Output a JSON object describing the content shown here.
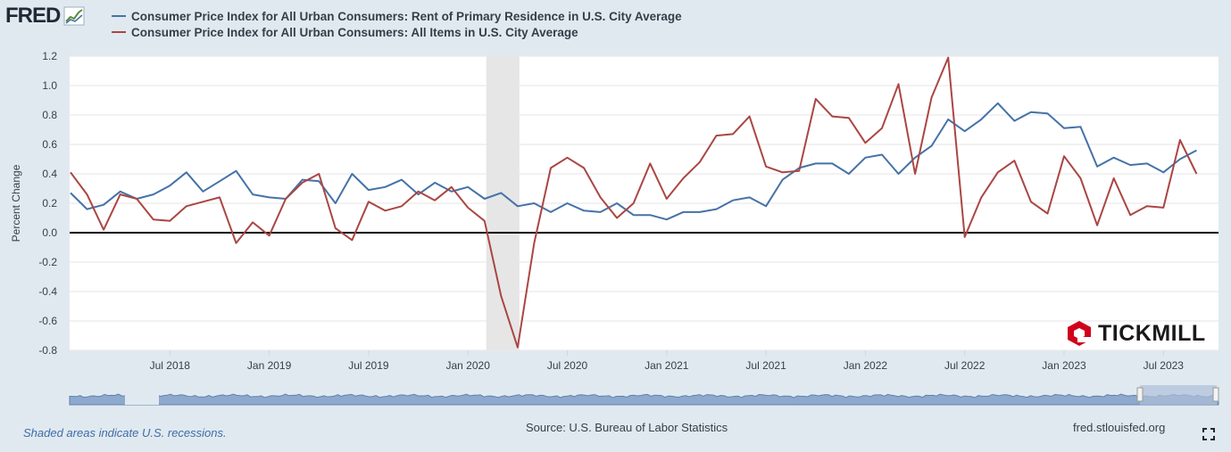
{
  "header": {
    "logo_text": "FRED"
  },
  "legend": [
    {
      "label": "Consumer Price Index for All Urban Consumers: Rent of Primary Residence in U.S. City Average",
      "color": "#4572a7"
    },
    {
      "label": "Consumer Price Index for All Urban Consumers: All Items in U.S. City Average",
      "color": "#aa4643"
    }
  ],
  "footer": {
    "note": "Shaded areas indicate U.S. recessions.",
    "source": "Source: U.S. Bureau of Labor Statistics",
    "url": "fred.stlouisfed.org"
  },
  "watermark": {
    "text": "TICKMILL",
    "color": "#d0021b"
  },
  "icons": {
    "fullscreen": "fullscreen-icon"
  },
  "chart_data": {
    "type": "line",
    "ylabel": "Percent Change",
    "xlabel": "",
    "ylim": [
      -0.8,
      1.2
    ],
    "y_ticks": [
      "1.2",
      "1.0",
      "0.8",
      "0.6",
      "0.4",
      "0.2",
      "0.0",
      "-0.2",
      "-0.4",
      "-0.6",
      "-0.8"
    ],
    "x_ticks": [
      "Jul 2018",
      "Jan 2019",
      "Jul 2019",
      "Jan 2020",
      "Jul 2020",
      "Jan 2021",
      "Jul 2021",
      "Jan 2022",
      "Jul 2022",
      "Jan 2023",
      "Jul 2023"
    ],
    "x_start": "2018-01",
    "x_end": "2023-08",
    "recession": {
      "start": "2020-02",
      "end": "2020-04"
    },
    "grid": true,
    "zero_line": true,
    "series": [
      {
        "name": "Consumer Price Index for All Urban Consumers: Rent of Primary Residence in U.S. City Average",
        "color": "#4572a7",
        "values": [
          0.27,
          0.16,
          0.19,
          0.28,
          0.23,
          0.26,
          0.32,
          0.41,
          0.28,
          0.35,
          0.42,
          0.26,
          0.24,
          0.23,
          0.36,
          0.35,
          0.2,
          0.4,
          0.29,
          0.31,
          0.36,
          0.26,
          0.34,
          0.28,
          0.31,
          0.23,
          0.27,
          0.18,
          0.2,
          0.14,
          0.2,
          0.15,
          0.14,
          0.2,
          0.12,
          0.12,
          0.09,
          0.14,
          0.14,
          0.16,
          0.22,
          0.24,
          0.18,
          0.36,
          0.44,
          0.47,
          0.47,
          0.4,
          0.51,
          0.53,
          0.4,
          0.51,
          0.59,
          0.77,
          0.69,
          0.77,
          0.88,
          0.76,
          0.82,
          0.81,
          0.71,
          0.72,
          0.45,
          0.51,
          0.46,
          0.47,
          0.41,
          0.5,
          0.56
        ]
      },
      {
        "name": "Consumer Price Index for All Urban Consumers: All Items in U.S. City Average",
        "color": "#aa4643",
        "values": [
          0.41,
          0.26,
          0.02,
          0.26,
          0.23,
          0.09,
          0.08,
          0.18,
          0.21,
          0.24,
          -0.07,
          0.07,
          -0.02,
          0.23,
          0.34,
          0.4,
          0.03,
          -0.05,
          0.21,
          0.15,
          0.18,
          0.28,
          0.22,
          0.31,
          0.17,
          0.08,
          -0.43,
          -0.78,
          -0.07,
          0.44,
          0.51,
          0.44,
          0.24,
          0.1,
          0.2,
          0.47,
          0.23,
          0.37,
          0.48,
          0.66,
          0.67,
          0.79,
          0.45,
          0.41,
          0.42,
          0.91,
          0.79,
          0.78,
          0.61,
          0.71,
          1.01,
          0.4,
          0.92,
          1.19,
          -0.03,
          0.24,
          0.41,
          0.49,
          0.21,
          0.13,
          0.52,
          0.37,
          0.05,
          0.37,
          0.12,
          0.18,
          0.17,
          0.63,
          0.4
        ]
      }
    ]
  }
}
